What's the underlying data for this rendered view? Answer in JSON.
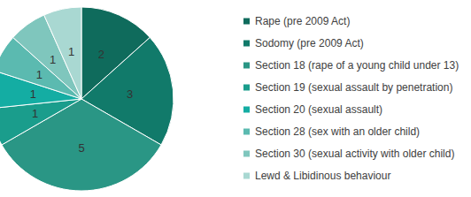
{
  "chart_data": {
    "type": "pie",
    "categories": [
      "Rape (pre 2009 Act)",
      "Sodomy (pre 2009 Act)",
      "Section 18 (rape of a young child under 13)",
      "Section 19 (sexual assault by penetration)",
      "Section 20 (sexual assault)",
      "Section 28 (sex with an older child)",
      "Section 30 (sexual activity with older child)",
      "Lewd & Libidinous behaviour"
    ],
    "values": [
      2,
      3,
      5,
      1,
      1,
      1,
      1,
      1
    ],
    "colors": [
      "#0f6b5c",
      "#117a6a",
      "#2a9685",
      "#1a9d8c",
      "#14ada3",
      "#5bbab0",
      "#7fc6bd",
      "#a9d8d2"
    ],
    "data_labels": true,
    "legend": "right"
  }
}
